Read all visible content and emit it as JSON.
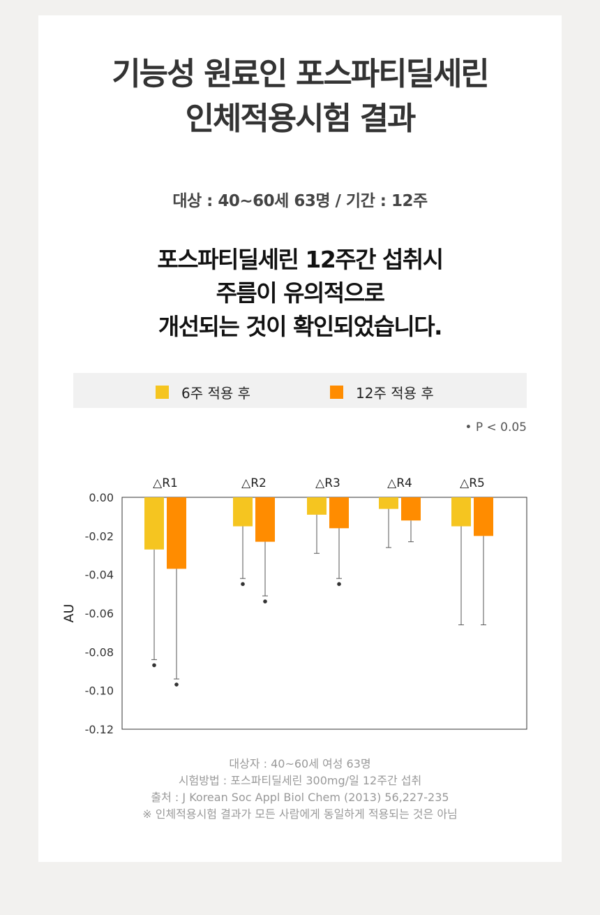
{
  "title": {
    "line1": "기능성 원료인 포스파티딜세린",
    "line2": "인체적용시험 결과"
  },
  "subject_line": "대상 : 40~60세 63명 / 기간 : 12주",
  "headline": {
    "line1": "포스파티딜세린 12주간 섭취시",
    "line2": "주름이 유의적으로",
    "line3": "개선되는 것이 확인되었습니다."
  },
  "significance_note": "• P < 0.05",
  "colors": {
    "week6": "#f5c520",
    "week12": "#ff8c00"
  },
  "chart_data": {
    "type": "bar",
    "categories": [
      "△R1",
      "△R2",
      "△R3",
      "△R4",
      "△R5"
    ],
    "series": [
      {
        "name": "6주 적용 후",
        "values": [
          -0.027,
          -0.015,
          -0.009,
          -0.006,
          -0.015
        ],
        "error_low": [
          -0.084,
          -0.042,
          -0.029,
          -0.026,
          -0.066
        ],
        "significant": [
          true,
          true,
          false,
          false,
          false
        ]
      },
      {
        "name": "12주 적용 후",
        "values": [
          -0.037,
          -0.023,
          -0.016,
          -0.012,
          -0.02
        ],
        "error_low": [
          -0.094,
          -0.051,
          -0.042,
          -0.023,
          -0.066
        ],
        "significant": [
          true,
          true,
          true,
          false,
          false
        ]
      }
    ],
    "ylabel": "AU",
    "ylim": [
      -0.12,
      0.0
    ],
    "yticks": [
      "0.00",
      "-0.02",
      "-0.04",
      "-0.06",
      "-0.08",
      "-0.10",
      "-0.12"
    ],
    "grid": false,
    "legend": "top"
  },
  "notes": {
    "line1": "대상자 : 40~60세 여성 63명",
    "line2": "시험방법 : 포스파티딜세린 300mg/일 12주간 섭취",
    "line3": "출처 : J Korean Soc Appl Biol Chem (2013) 56,227-235",
    "line4": "※ 인체적용시험 결과가 모든 사람에게 동일하게 적용되는 것은 아님"
  }
}
